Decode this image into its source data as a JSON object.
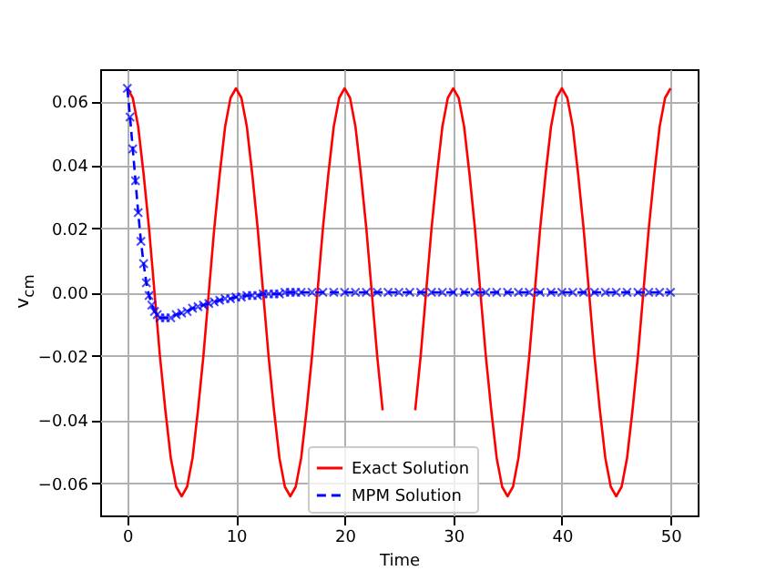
{
  "chart_data": {
    "type": "line",
    "xlabel": "Time",
    "ylabel": "v$_{cm}$",
    "xlim": [
      -2.5,
      52.5
    ],
    "xticks": [
      0,
      10,
      20,
      30,
      40,
      50
    ],
    "ylim": [
      -0.07,
      0.07
    ],
    "yticks": [
      {
        "value": -0.06,
        "label": "−0.06"
      },
      {
        "value": -0.04,
        "label": "−0.04"
      },
      {
        "value": -0.02,
        "label": "−0.02"
      },
      {
        "value": 0,
        "label": "0.00"
      },
      {
        "value": 0.02,
        "label": "0.02"
      },
      {
        "value": 0.04,
        "label": "0.04"
      },
      {
        "value": 0.06,
        "label": "0.06"
      }
    ],
    "grid": true,
    "legend": "bottom",
    "series": [
      {
        "name": "Exact Solution",
        "color": "#ff0000",
        "line_style": "solid",
        "marker": "none",
        "x": [
          0,
          0.5,
          1,
          1.5,
          2,
          2.5,
          3,
          3.5,
          4,
          4.5,
          5,
          5.5,
          6,
          6.5,
          7,
          7.5,
          8,
          8.5,
          9,
          9.5,
          10,
          10.5,
          11,
          11.5,
          12,
          12.5,
          13,
          13.5,
          14,
          14.5,
          15,
          15.5,
          16,
          16.5,
          17,
          17.5,
          18,
          18.5,
          19,
          19.5,
          20,
          20.5,
          21,
          21.5,
          22,
          22.5,
          23,
          23.5,
          24,
          24.5,
          25,
          25.5,
          26,
          26.5,
          27,
          27.5,
          28,
          28.5,
          29,
          29.5,
          30,
          30.5,
          31,
          31.5,
          32,
          32.5,
          33,
          33.5,
          34,
          34.5,
          35,
          35.5,
          36,
          36.5,
          37,
          37.5,
          38,
          38.5,
          39,
          39.5,
          40,
          40.5,
          41,
          41.5,
          42,
          42.5,
          43,
          43.5,
          44,
          44.5,
          45,
          45.5,
          46,
          46.5,
          47,
          47.5,
          48,
          48.5,
          49,
          49.5,
          50
        ],
        "values": [
          0.064,
          0.061,
          0.052,
          0.037,
          0.02,
          0,
          -0.02,
          -0.037,
          -0.052,
          -0.061,
          -0.064,
          -0.061,
          -0.052,
          -0.037,
          -0.02,
          0,
          0.02,
          0.037,
          0.052,
          0.061,
          0.064,
          0.061,
          0.052,
          0.037,
          0.02,
          0,
          -0.02,
          -0.037,
          -0.052,
          -0.061,
          -0.064,
          -0.061,
          -0.052,
          -0.037,
          -0.02,
          0,
          0.02,
          0.037,
          0.052,
          0.061,
          0.064,
          0.061,
          0.052,
          0.037,
          0.02,
          0,
          -0.02,
          -0.037,
          null,
          null,
          null,
          null,
          null,
          -0.037,
          -0.02,
          0,
          0.02,
          0.037,
          0.052,
          0.061,
          0.064,
          0.061,
          0.052,
          0.037,
          0.02,
          0,
          -0.02,
          -0.037,
          -0.052,
          -0.061,
          -0.064,
          -0.061,
          -0.052,
          -0.037,
          -0.02,
          0,
          0.02,
          0.037,
          0.052,
          0.061,
          0.064,
          0.061,
          0.052,
          0.037,
          0.02,
          0,
          -0.02,
          -0.037,
          -0.052,
          -0.061,
          -0.064,
          -0.061,
          -0.052,
          -0.037,
          -0.02,
          0,
          0.02,
          0.037,
          0.052,
          0.061,
          0.064
        ]
      },
      {
        "name": "MPM Solution",
        "color": "#0000ff",
        "line_style": "dashed",
        "marker": "cross",
        "x": [
          0,
          0.25,
          0.5,
          0.75,
          1,
          1.25,
          1.5,
          1.75,
          2,
          2.25,
          2.5,
          2.75,
          3,
          3.5,
          4,
          4.5,
          5,
          5.5,
          6,
          6.5,
          7,
          7.5,
          8,
          8.5,
          9,
          9.5,
          10,
          10.5,
          11,
          11.5,
          12,
          12.5,
          13,
          13.5,
          14,
          14.5,
          15,
          15.5,
          16,
          17,
          18,
          19,
          20,
          21,
          22,
          23,
          24,
          25,
          26,
          27,
          28,
          29,
          30,
          31,
          32,
          33,
          34,
          35,
          36,
          37,
          38,
          39,
          40,
          41,
          42,
          43,
          44,
          45,
          46,
          47,
          48,
          49,
          50
        ],
        "values": [
          0.064,
          0.055,
          0.045,
          0.035,
          0.025,
          0.016,
          0.009,
          0.003,
          -0.001,
          -0.004,
          -0.006,
          -0.007,
          -0.008,
          -0.008,
          -0.008,
          -0.007,
          -0.0065,
          -0.006,
          -0.005,
          -0.0045,
          -0.004,
          -0.0035,
          -0.003,
          -0.0025,
          -0.002,
          -0.002,
          -0.0015,
          -0.0015,
          -0.001,
          -0.001,
          -0.001,
          -0.0005,
          -0.0005,
          -0.0005,
          -0.0005,
          0,
          0,
          0,
          0,
          0,
          0,
          0,
          0,
          0,
          0,
          0,
          0,
          0,
          0,
          0,
          0,
          0,
          0,
          0,
          0,
          0,
          0,
          0,
          0,
          0,
          0,
          0,
          0,
          0,
          0,
          0,
          0,
          0,
          0,
          0,
          0,
          0,
          0
        ]
      }
    ]
  }
}
